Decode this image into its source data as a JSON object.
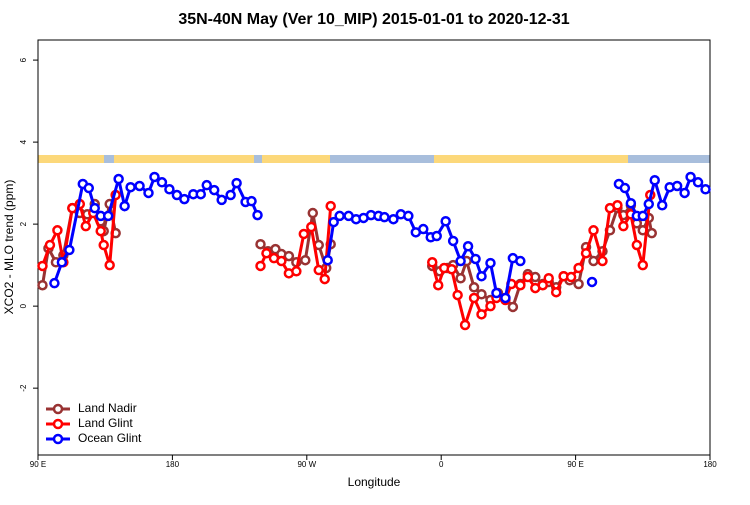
{
  "chart_data": {
    "type": "line",
    "title": "35N-40N May (Ver 10_MIP)   2015-01-01 to 2020-12-31",
    "xlabel": "Longitude",
    "ylabel": "XCO2 - MLO trend (ppm)",
    "xlim": [
      90,
      540
    ],
    "ylim": [
      -3.63,
      6.49
    ],
    "xticks": [
      {
        "value": 90,
        "label": "90 E"
      },
      180,
      {
        "value": 270,
        "label": "90 W"
      },
      {
        "value": 360,
        "label": "0"
      },
      {
        "value": 450,
        "label": "90 E"
      },
      {
        "value": 540,
        "label": "180"
      }
    ],
    "yticks": [
      -2,
      0,
      2,
      4,
      6
    ],
    "legend": "bottomleft",
    "series": [
      {
        "name": "Land Nadir",
        "color": "#993333",
        "x": [
          93,
          97,
          102,
          107,
          113,
          118,
          123,
          128,
          132,
          134,
          138,
          142,
          null,
          239,
          244,
          249,
          253,
          258,
          263,
          269,
          274,
          278,
          283,
          286,
          null,
          354,
          359,
          364,
          368,
          373,
          377,
          382,
          387,
          393,
          398,
          403,
          408,
          413,
          418,
          423,
          428,
          432,
          437,
          442,
          446,
          452,
          457,
          462,
          468,
          473,
          478,
          482,
          487,
          491,
          495,
          499,
          501
        ],
        "values": [
          0.51,
          1.41,
          1.07,
          1.24,
          2.39,
          2.27,
          2.24,
          2.49,
          2.07,
          1.83,
          2.49,
          1.78,
          null,
          1.51,
          1.34,
          1.39,
          1.27,
          1.22,
          1.07,
          1.12,
          2.27,
          1.49,
          0.93,
          1.51,
          null,
          0.98,
          0.85,
          0.93,
          1.0,
          0.68,
          1.1,
          0.46,
          0.29,
          0.15,
          0.32,
          0.2,
          -0.02,
          0.54,
          0.78,
          0.71,
          0.54,
          0.59,
          0.46,
          0.73,
          0.63,
          0.54,
          1.44,
          1.1,
          1.34,
          1.85,
          2.39,
          2.22,
          2.46,
          2.02,
          1.85,
          2.15,
          1.78
        ]
      },
      {
        "name": "Land Glint",
        "color": "#ff0000",
        "x": [
          93,
          98,
          103,
          107,
          113,
          118,
          122,
          127,
          132,
          134,
          138,
          142,
          null,
          239,
          243,
          248,
          253,
          258,
          263,
          268,
          273,
          278,
          282,
          286,
          null,
          354,
          358,
          362,
          367,
          371,
          376,
          382,
          387,
          393,
          397,
          403,
          407,
          413,
          418,
          423,
          428,
          432,
          437,
          442,
          447,
          452,
          457,
          462,
          468,
          473,
          478,
          482,
          487,
          491,
          495,
          500
        ],
        "values": [
          0.98,
          1.49,
          1.85,
          1.07,
          2.39,
          2.49,
          1.95,
          2.27,
          1.83,
          1.49,
          1.0,
          2.71,
          null,
          0.98,
          1.29,
          1.17,
          1.1,
          0.8,
          0.85,
          1.76,
          1.93,
          0.88,
          0.66,
          2.44,
          null,
          1.07,
          0.51,
          0.93,
          0.9,
          0.27,
          -0.46,
          0.2,
          -0.2,
          0.0,
          0.2,
          0.15,
          0.54,
          0.51,
          0.71,
          0.44,
          0.51,
          0.68,
          0.34,
          0.73,
          0.71,
          0.93,
          1.29,
          1.85,
          1.1,
          2.39,
          2.46,
          1.95,
          2.24,
          1.49,
          1.0,
          2.71
        ]
      },
      {
        "name": "Ocean Glint",
        "color": "#0000ff",
        "x": [
          101,
          106,
          111,
          120,
          124,
          128,
          132,
          137,
          144,
          148,
          152,
          158,
          164,
          168,
          173,
          178,
          183,
          188,
          194,
          199,
          203,
          208,
          213,
          219,
          223,
          229,
          233,
          237,
          null,
          284,
          288,
          292,
          298,
          303,
          308,
          313,
          318,
          322,
          328,
          333,
          338,
          343,
          348,
          353,
          357,
          363,
          368,
          373,
          378,
          383,
          387,
          393,
          397,
          403,
          408,
          413,
          null,
          461,
          null,
          479,
          483,
          487,
          491,
          495,
          499,
          503,
          508,
          513,
          518,
          523,
          527,
          532,
          537
        ],
        "values": [
          0.56,
          1.07,
          1.37,
          2.98,
          2.88,
          2.39,
          2.2,
          2.2,
          3.1,
          2.44,
          2.9,
          2.93,
          2.76,
          3.15,
          3.02,
          2.85,
          2.71,
          2.61,
          2.73,
          2.73,
          2.95,
          2.83,
          2.59,
          2.71,
          3.0,
          2.54,
          2.56,
          2.22,
          null,
          1.12,
          2.05,
          2.2,
          2.2,
          2.12,
          2.15,
          2.22,
          2.2,
          2.17,
          2.12,
          2.24,
          2.2,
          1.8,
          1.88,
          1.68,
          1.71,
          2.07,
          1.59,
          1.1,
          1.46,
          1.15,
          0.73,
          1.05,
          0.32,
          0.2,
          1.17,
          1.1,
          null,
          0.59,
          null,
          2.98,
          2.88,
          2.51,
          2.2,
          2.2,
          2.49,
          3.07,
          2.46,
          2.9,
          2.93,
          2.76,
          3.15,
          3.02,
          2.85
        ]
      }
    ]
  }
}
